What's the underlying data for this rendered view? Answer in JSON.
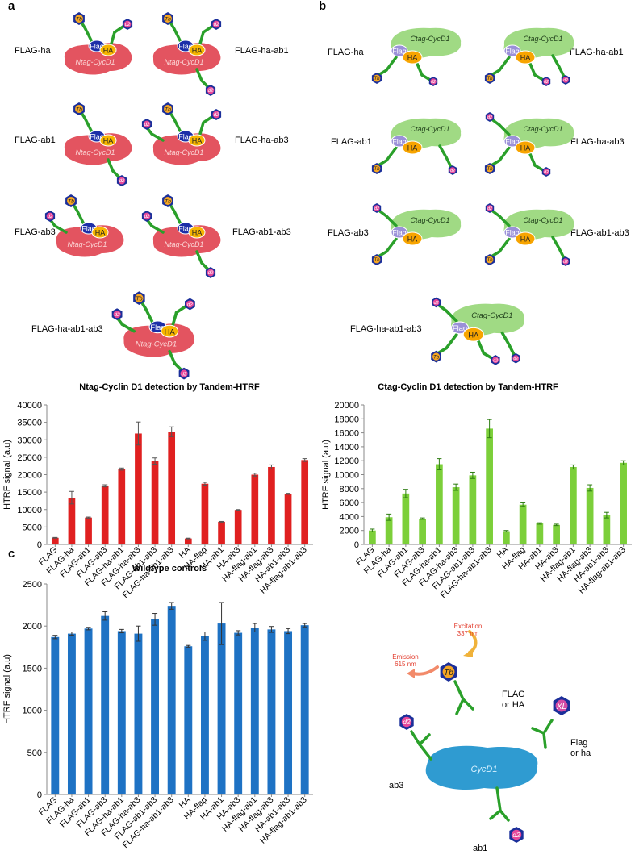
{
  "panel_letters": {
    "a": "a",
    "b": "b",
    "c": "c"
  },
  "panel_a": {
    "constructs": [
      "FLAG-ha",
      "FLAG-ha-ab1",
      "FLAG-ab1",
      "FLAG-ha-ab3",
      "FLAG-ab3",
      "FLAG-ab1-ab3",
      "FLAG-ha-ab1-ab3"
    ],
    "protein_label": "Ntag-CycD1",
    "tag_flag": "Flag",
    "tag_ha": "HA",
    "donor": "Tb",
    "acceptor": "d2"
  },
  "panel_b": {
    "constructs": [
      "FLAG-ha",
      "FLAG-ha-ab1",
      "FLAG-ab1",
      "FLAG-ha-ab3",
      "FLAG-ab3",
      "FLAG-ab1-ab3",
      "FLAG-ha-ab1-ab3"
    ],
    "protein_label": "Ctag-CycD1",
    "tag_flag": "Flag",
    "tag_ha": "HA",
    "donor": "Tb",
    "acceptor": "d2"
  },
  "scheme": {
    "excitation": "Excitation\n337 nm",
    "emission": "Emission\n615 nm",
    "donor": "Tb",
    "donor_target": "FLAG\nor HA",
    "acceptor_xl": "XL",
    "xl_target": "Flag\nor ha",
    "protein": "CycD1",
    "ab3_label": "ab3",
    "ab1_label": "ab1",
    "acceptor_d2": "d2"
  },
  "chart_data": [
    {
      "type": "bar",
      "title": "Ntag-Cyclin D1 detection by Tandem-HTRF",
      "ylabel": "HTRF signal (a.u)",
      "xlabel": "",
      "ylim": [
        0,
        40000
      ],
      "yticks": [
        0,
        5000,
        10000,
        15000,
        20000,
        25000,
        30000,
        35000,
        40000
      ],
      "color": "#e02020",
      "categories": [
        "FLAG",
        "FLAG-ha",
        "FLAG-ab1",
        "FLAG-ab3",
        "FLAG-ha-ab1",
        "FLAG-ha-ab3",
        "FLAG-ab1-ab3",
        "FLAG-ha-ab1-ab3",
        "HA",
        "HA-flag",
        "HA-ab1",
        "HA-ab3",
        "HA-flag-ab1",
        "HA-flag-ab3",
        "HA-ab1-ab3",
        "HA-flag-ab1-ab3"
      ],
      "values": [
        1900,
        13400,
        7700,
        16800,
        21600,
        31800,
        23900,
        32300,
        1700,
        17400,
        6500,
        9900,
        20000,
        22200,
        14500,
        24200
      ],
      "errors": [
        100,
        1800,
        150,
        300,
        300,
        3300,
        900,
        1400,
        100,
        400,
        100,
        100,
        400,
        600,
        150,
        400
      ]
    },
    {
      "type": "bar",
      "title": "Ctag-Cyclin D1 detection by Tandem-HTRF",
      "ylabel": "HTRF signal (a.u)",
      "xlabel": "",
      "ylim": [
        0,
        20000
      ],
      "yticks": [
        0,
        2000,
        4000,
        6000,
        8000,
        10000,
        12000,
        14000,
        16000,
        18000,
        20000
      ],
      "color": "#7ccf3a",
      "categories": [
        "FLAG",
        "FLAG-ha",
        "FLAG-ab1",
        "FLAG-ab3",
        "FLAG-ha-ab1",
        "FLAG-ha-ab3",
        "FLAG-ab1-ab3",
        "FLAG-ha-ab1-ab3",
        "HA",
        "HA-flag",
        "HA-ab1",
        "HA-ab3",
        "HA-flag-ab1",
        "HA-flag-ab3",
        "HA-ab1-ab3",
        "HA-flag-ab1-ab3"
      ],
      "values": [
        2000,
        3900,
        7300,
        3700,
        11500,
        8200,
        9900,
        16600,
        1900,
        5700,
        3000,
        2800,
        11100,
        8100,
        4200,
        11700
      ],
      "errors": [
        200,
        450,
        600,
        100,
        800,
        450,
        450,
        1300,
        100,
        250,
        100,
        100,
        300,
        450,
        400,
        300
      ]
    },
    {
      "type": "bar",
      "title": "Wildtype controls",
      "ylabel": "HTRF signal (a.u)",
      "xlabel": "",
      "ylim": [
        0,
        2500
      ],
      "yticks": [
        0,
        500,
        1000,
        1500,
        2000,
        2500
      ],
      "color": "#1e72c4",
      "categories": [
        "FLAG",
        "FLAG-ha",
        "FLAG-ab1",
        "FLAG-ab3",
        "FLAG-ha-ab1",
        "FLAG-ha-ab3",
        "FLAG-ab1-ab3",
        "FLAG-ha-ab1-ab3",
        "HA",
        "HA-flag",
        "HA-ab1",
        "HA-ab3",
        "HA-flag-ab1",
        "HA-flag-ab3",
        "HA-ab1-ab3",
        "HA-flag-ab1-ab3"
      ],
      "values": [
        1870,
        1910,
        1970,
        2120,
        1940,
        1910,
        2080,
        2240,
        1760,
        1880,
        2030,
        1920,
        1980,
        1960,
        1940,
        2010
      ],
      "errors": [
        20,
        20,
        15,
        50,
        20,
        90,
        70,
        40,
        10,
        50,
        250,
        25,
        50,
        35,
        30,
        20
      ]
    }
  ]
}
